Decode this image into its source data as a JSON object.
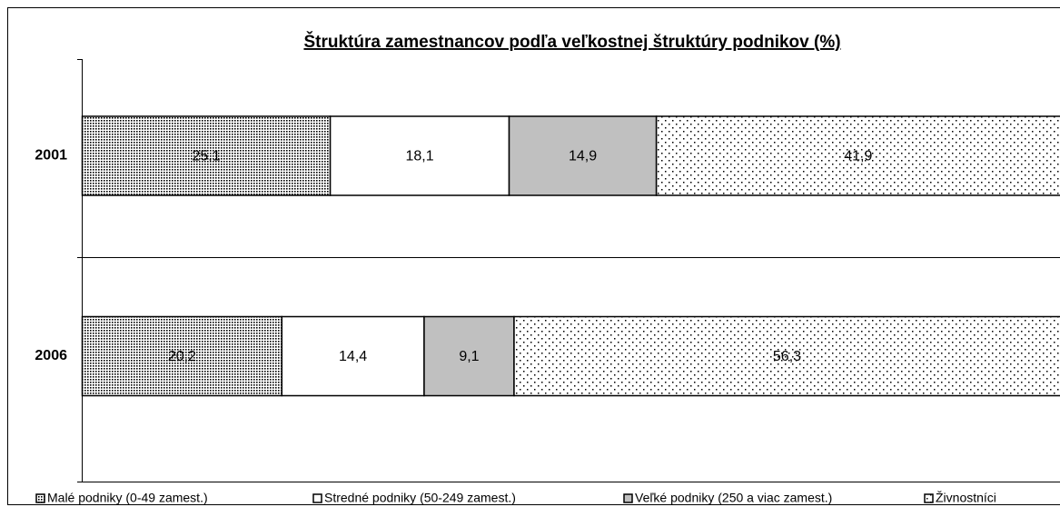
{
  "chart_data": {
    "type": "stacked-bar-horizontal",
    "title": "Štruktúra zamestnancov podľa veľkostnej štruktúry podnikov (%)",
    "categories": [
      "2001",
      "2006"
    ],
    "xlim": [
      0,
      100
    ],
    "series": [
      {
        "name": "Malé podniky (0-49 zamest.)",
        "color": "#ffffff",
        "pattern": "dense-dots",
        "values": [
          25.1,
          20.2
        ],
        "value_labels": [
          "25,1",
          "20,2"
        ]
      },
      {
        "name": "Stredné podniky (50-249 zamest.)",
        "color": "#ffffff",
        "pattern": "none",
        "values": [
          18.1,
          14.4
        ],
        "value_labels": [
          "18,1",
          "14,4"
        ]
      },
      {
        "name": "Veľké podniky (250 a viac zamest.)",
        "color": "#c0c0c0",
        "pattern": "none",
        "values": [
          14.9,
          9.1
        ],
        "value_labels": [
          "14,9",
          "9,1"
        ]
      },
      {
        "name": "Živnostníci",
        "color": "#ffffff",
        "pattern": "sparse-dots",
        "values": [
          41.9,
          56.3
        ],
        "value_labels": [
          "41,9",
          "56,3"
        ]
      }
    ],
    "legend": "bottom"
  }
}
